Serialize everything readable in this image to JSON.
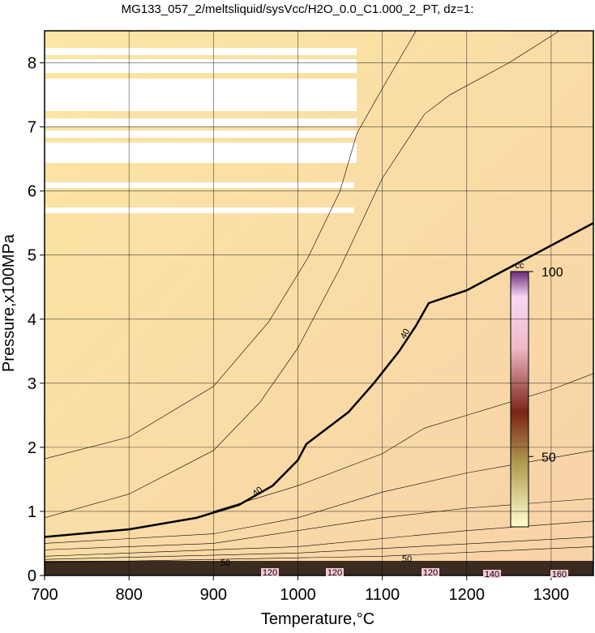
{
  "chart_data": {
    "type": "contour",
    "title": "MG133_057_2/meltsliquid/sysVcc/H2O_0.0_C1.000_2_PT, dz=1:",
    "x_label": "Temperature,°C",
    "y_label": "Pressure,x100MPa",
    "xlim": [
      700,
      1350
    ],
    "xticks": [
      700,
      800,
      900,
      1000,
      1100,
      1200,
      1300
    ],
    "ylim": [
      0,
      8.5
    ],
    "yticks": [
      0,
      1,
      2,
      3,
      4,
      5,
      6,
      7,
      8
    ],
    "grid": true,
    "colorbar": {
      "label": "cc",
      "lim": [
        31,
        100
      ],
      "ticks": [
        50,
        100
      ]
    },
    "contours": [
      {
        "bold": true,
        "x": [
          700,
          800,
          880,
          930,
          970,
          1000,
          1010,
          1030,
          1060,
          1090,
          1120,
          1140,
          1155,
          1200,
          1250,
          1300,
          1350
        ],
        "y": [
          0.6,
          0.72,
          0.9,
          1.1,
          1.4,
          1.8,
          2.05,
          2.25,
          2.55,
          3.0,
          3.5,
          3.9,
          4.25,
          4.45,
          4.8,
          5.15,
          5.5
        ]
      },
      {
        "x": [
          700,
          800,
          900,
          965,
          1012,
          1050,
          1070,
          1100,
          1140
        ],
        "y": [
          1.82,
          2.16,
          2.95,
          3.95,
          4.96,
          6.0,
          6.9,
          7.6,
          8.5
        ]
      },
      {
        "x": [
          700,
          800,
          900,
          955,
          1000,
          1050,
          1100,
          1150,
          1180,
          1250,
          1310
        ],
        "y": [
          0.9,
          1.27,
          1.95,
          2.7,
          3.55,
          4.8,
          6.2,
          7.2,
          7.5,
          8.0,
          8.5
        ]
      },
      {
        "x": [
          900,
          1000,
          1100,
          1150,
          1200,
          1300,
          1350
        ],
        "y": [
          1.0,
          1.4,
          1.9,
          2.3,
          2.5,
          2.9,
          3.15
        ]
      },
      {
        "x": [
          700,
          900,
          1000,
          1100,
          1200,
          1350
        ],
        "y": [
          0.5,
          0.65,
          0.9,
          1.3,
          1.6,
          1.95
        ]
      },
      {
        "x": [
          700,
          900,
          1100,
          1200,
          1350
        ],
        "y": [
          0.4,
          0.5,
          0.9,
          1.05,
          1.2
        ]
      },
      {
        "x": [
          700,
          1000,
          1200,
          1350
        ],
        "y": [
          0.3,
          0.45,
          0.7,
          0.85
        ]
      },
      {
        "x": [
          700,
          1000,
          1350
        ],
        "y": [
          0.25,
          0.35,
          0.6
        ]
      },
      {
        "x": [
          700,
          1100,
          1350
        ],
        "y": [
          0.2,
          0.3,
          0.45
        ]
      }
    ],
    "contour_labels": [
      40,
      40,
      50,
      50,
      120,
      120,
      120,
      140,
      160
    ]
  }
}
